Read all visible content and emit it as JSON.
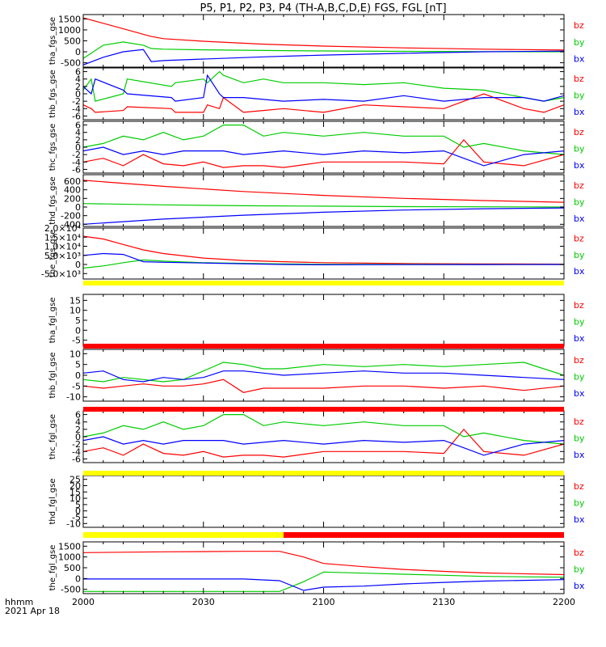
{
  "title": "P5, P1, P2, P3, P4 (TH-A,B,C,D,E) FGS, FGL [nT]",
  "colors": {
    "bx": "#0000ff",
    "by": "#00cc00",
    "bz": "#ff0000",
    "bar_yellow": "#ffff00",
    "bar_red": "#ff0000",
    "axis": "#000000"
  },
  "x_axis": {
    "ticks": [
      "2000",
      "2030",
      "2100",
      "2130",
      "2200"
    ],
    "label_line1": "hhmm",
    "label_line2": "2021 Apr 18"
  },
  "chart_data": [
    {
      "type": "line",
      "ylabel": "tha_fgs_gse",
      "ylim": [
        -700,
        1700
      ],
      "ytick_labels": [
        "1500",
        "1000",
        "500",
        "0",
        "-500"
      ],
      "ytick_values": [
        1500,
        1000,
        500,
        0,
        -500
      ],
      "legend": [
        "bz",
        "by",
        "bx"
      ],
      "x_minutes": [
        0,
        5,
        10,
        15,
        17,
        20,
        30,
        45,
        60,
        80,
        100,
        120
      ],
      "series": [
        {
          "name": "bz",
          "values": [
            1550,
            1300,
            1050,
            800,
            700,
            600,
            480,
            350,
            260,
            180,
            120,
            80
          ]
        },
        {
          "name": "by",
          "values": [
            -300,
            300,
            450,
            300,
            150,
            120,
            90,
            60,
            40,
            20,
            10,
            0
          ]
        },
        {
          "name": "bx",
          "values": [
            -600,
            -250,
            0,
            100,
            -450,
            -400,
            -330,
            -230,
            -150,
            -70,
            0,
            30
          ]
        }
      ]
    },
    {
      "type": "line",
      "ylabel": "thb_fgs_gse",
      "ylim": [
        -7,
        7
      ],
      "ytick_labels": [
        "6",
        "4",
        "2",
        "0",
        "-2",
        "-4",
        "-6"
      ],
      "ytick_values": [
        6,
        4,
        2,
        0,
        -2,
        -4,
        -6
      ],
      "legend": [
        "bz",
        "by",
        "bx"
      ],
      "x_minutes": [
        0,
        2,
        3,
        10,
        11,
        22,
        23,
        30,
        31,
        34,
        35,
        40,
        45,
        50,
        60,
        70,
        80,
        90,
        100,
        110,
        115,
        120
      ],
      "series": [
        {
          "name": "bz",
          "values": [
            -3,
            -4,
            -5,
            -4.5,
            -3.5,
            -4,
            -5,
            -5,
            -3,
            -4,
            -1,
            -5,
            -4.5,
            -4,
            -5,
            -3,
            -3.5,
            -4,
            0,
            -4,
            -5,
            -3
          ]
        },
        {
          "name": "by",
          "values": [
            1,
            4,
            -2,
            0,
            4,
            2,
            3,
            4,
            3,
            6,
            5,
            3,
            4,
            3,
            3,
            2.5,
            3,
            1.5,
            1,
            -1,
            -2,
            -1
          ]
        },
        {
          "name": "bx",
          "values": [
            2,
            0,
            4,
            1,
            0,
            -1,
            -2,
            -1,
            5,
            0,
            -1,
            -1,
            -1.5,
            -2,
            -1.5,
            -2,
            -0.5,
            -2,
            -1,
            -1,
            -2,
            -0.5
          ]
        }
      ]
    },
    {
      "type": "line",
      "ylabel": "thc_fgs_gse",
      "ylim": [
        -7,
        7
      ],
      "ytick_labels": [
        "6",
        "4",
        "2",
        "0",
        "-2",
        "-4",
        "-6"
      ],
      "ytick_values": [
        6,
        4,
        2,
        0,
        -2,
        -4,
        -6
      ],
      "legend": [
        "bz",
        "by",
        "bx"
      ],
      "x_minutes": [
        0,
        5,
        10,
        15,
        20,
        25,
        30,
        35,
        40,
        45,
        50,
        60,
        70,
        80,
        90,
        95,
        100,
        110,
        120
      ],
      "series": [
        {
          "name": "bz",
          "values": [
            -4,
            -3,
            -5,
            -2,
            -4.5,
            -5,
            -4,
            -5.5,
            -5,
            -5,
            -5.5,
            -4,
            -4,
            -4,
            -4.5,
            2,
            -4,
            -5,
            -2
          ]
        },
        {
          "name": "by",
          "values": [
            0,
            1,
            3,
            2,
            4,
            2,
            3,
            6,
            6,
            3,
            4,
            3,
            4,
            3,
            3,
            0,
            1,
            -1,
            -2
          ]
        },
        {
          "name": "bx",
          "values": [
            -1,
            0,
            -2,
            -1,
            -2,
            -1,
            -1,
            -1,
            -2,
            -1.5,
            -1,
            -2,
            -1,
            -1.5,
            -1,
            -3,
            -5,
            -2,
            -1
          ]
        }
      ]
    },
    {
      "type": "line",
      "ylabel": "thd_fgs_gse",
      "ylim": [
        -450,
        750
      ],
      "ytick_labels": [
        "600",
        "400",
        "200",
        "0",
        "-200",
        "-400"
      ],
      "ytick_values": [
        600,
        400,
        200,
        0,
        -200,
        -400
      ],
      "legend": [
        "bz",
        "by",
        "bx"
      ],
      "x_minutes": [
        0,
        20,
        40,
        60,
        80,
        100,
        120
      ],
      "series": [
        {
          "name": "bz",
          "values": [
            620,
            480,
            360,
            270,
            200,
            150,
            110
          ]
        },
        {
          "name": "by",
          "values": [
            80,
            50,
            30,
            20,
            10,
            5,
            0
          ]
        },
        {
          "name": "bx",
          "values": [
            -400,
            -280,
            -190,
            -120,
            -70,
            -40,
            -20
          ]
        }
      ]
    },
    {
      "type": "line",
      "ylabel": "the_fgs_gse",
      "ylim": [
        -8000,
        20000
      ],
      "ytick_labels": [
        "2.0×10⁴",
        "1.5×10⁴",
        "1.0×10⁴",
        "5.0×10³",
        "0",
        "-5.0×10³"
      ],
      "ytick_values": [
        20000,
        15000,
        10000,
        5000,
        0,
        -5000
      ],
      "legend": [
        "bz",
        "by",
        "bx"
      ],
      "x_minutes": [
        0,
        5,
        10,
        15,
        20,
        30,
        40,
        50,
        60,
        80,
        100,
        120
      ],
      "series": [
        {
          "name": "bz",
          "values": [
            15500,
            14000,
            11000,
            8000,
            6000,
            3500,
            2200,
            1500,
            1000,
            500,
            300,
            200
          ]
        },
        {
          "name": "by",
          "values": [
            -2000,
            -800,
            1000,
            2500,
            1800,
            1000,
            600,
            300,
            100,
            50,
            0,
            0
          ]
        },
        {
          "name": "bx",
          "values": [
            5000,
            6000,
            5500,
            1500,
            1200,
            800,
            400,
            0,
            -200,
            -100,
            -50,
            0
          ]
        }
      ]
    },
    {
      "type": "line",
      "ylabel": "tha_fgl_gse",
      "ylim": [
        -8,
        18
      ],
      "ytick_labels": [
        "15",
        "10",
        "5",
        "0",
        "-5"
      ],
      "ytick_values": [
        15,
        10,
        5,
        0,
        -5
      ],
      "legend": [
        "bz",
        "by",
        "bx"
      ],
      "x_minutes": [],
      "series": [
        {
          "name": "bz",
          "values": []
        },
        {
          "name": "by",
          "values": []
        },
        {
          "name": "bx",
          "values": []
        }
      ]
    },
    {
      "type": "line",
      "ylabel": "thb_fgl_gse",
      "ylim": [
        -12,
        12
      ],
      "ytick_labels": [
        "10",
        "5",
        "0",
        "-5",
        "-10"
      ],
      "ytick_values": [
        10,
        5,
        0,
        -5,
        -10
      ],
      "legend": [
        "bz",
        "by",
        "bx"
      ],
      "x_minutes": [
        0,
        5,
        10,
        15,
        20,
        25,
        30,
        35,
        40,
        45,
        50,
        60,
        70,
        80,
        90,
        100,
        110,
        120
      ],
      "series": [
        {
          "name": "bz",
          "values": [
            -5,
            -6,
            -5,
            -4,
            -5,
            -5,
            -4,
            -2,
            -8,
            -6,
            -6,
            -6,
            -5,
            -5,
            -6,
            -5,
            -7,
            -5
          ]
        },
        {
          "name": "by",
          "values": [
            -2,
            -3,
            -1,
            -2,
            -3,
            -2,
            2,
            6,
            5,
            3,
            3,
            5,
            4,
            5,
            4,
            5,
            6,
            0
          ]
        },
        {
          "name": "bx",
          "values": [
            1,
            2,
            -2,
            -3,
            -1,
            -2,
            -1,
            2,
            2,
            1,
            0,
            1,
            2,
            1,
            1,
            0,
            -1,
            -2
          ]
        }
      ]
    },
    {
      "type": "line",
      "ylabel": "thc_fgl_gse",
      "ylim": [
        -7,
        7
      ],
      "ytick_labels": [
        "6",
        "4",
        "2",
        "0",
        "-2",
        "-4",
        "-6"
      ],
      "ytick_values": [
        6,
        4,
        2,
        0,
        -2,
        -4,
        -6
      ],
      "legend": [
        "bz",
        "by",
        "bx"
      ],
      "x_minutes": [
        0,
        5,
        10,
        15,
        20,
        25,
        30,
        35,
        40,
        45,
        50,
        60,
        70,
        80,
        90,
        95,
        100,
        110,
        120
      ],
      "series": [
        {
          "name": "bz",
          "values": [
            -4,
            -3,
            -5,
            -2,
            -4.5,
            -5,
            -4,
            -5.5,
            -5,
            -5,
            -5.5,
            -4,
            -4,
            -4,
            -4.5,
            2,
            -4,
            -5,
            -2
          ]
        },
        {
          "name": "by",
          "values": [
            0,
            1,
            3,
            2,
            4,
            2,
            3,
            6,
            6,
            3,
            4,
            3,
            4,
            3,
            3,
            0,
            1,
            -1,
            -2
          ]
        },
        {
          "name": "bx",
          "values": [
            -1,
            0,
            -2,
            -1,
            -2,
            -1,
            -1,
            -1,
            -2,
            -1.5,
            -1,
            -2,
            -1,
            -1.5,
            -1,
            -3,
            -5,
            -2,
            -1
          ]
        }
      ]
    },
    {
      "type": "line",
      "ylabel": "thd_fgl_gse",
      "ylim": [
        -13,
        28
      ],
      "ytick_labels": [
        "25",
        "20",
        "15",
        "10",
        "5",
        "0",
        "-5",
        "-10"
      ],
      "ytick_values": [
        25,
        20,
        15,
        10,
        5,
        0,
        -5,
        -10
      ],
      "legend": [
        "bz",
        "by",
        "bx"
      ],
      "x_minutes": [],
      "series": [
        {
          "name": "bz",
          "values": []
        },
        {
          "name": "by",
          "values": []
        },
        {
          "name": "bx",
          "values": []
        }
      ]
    },
    {
      "type": "line",
      "ylabel": "the_fgl_gse",
      "ylim": [
        -700,
        1700
      ],
      "ytick_labels": [
        "1500",
        "1000",
        "500",
        "0",
        "-500"
      ],
      "ytick_values": [
        1500,
        1000,
        500,
        0,
        -500
      ],
      "legend": [
        "bz",
        "by",
        "bx"
      ],
      "x_minutes": [
        0,
        10,
        20,
        40,
        49,
        55,
        60,
        70,
        80,
        90,
        100,
        120
      ],
      "series": [
        {
          "name": "bz",
          "values": [
            1200,
            1220,
            1240,
            1260,
            1260,
            1000,
            700,
            550,
            420,
            330,
            260,
            180
          ]
        },
        {
          "name": "by",
          "values": [
            -600,
            -600,
            -600,
            -600,
            -600,
            -150,
            300,
            250,
            200,
            150,
            100,
            60
          ]
        },
        {
          "name": "bx",
          "values": [
            -20,
            -20,
            -20,
            -20,
            -100,
            -550,
            -400,
            -350,
            -250,
            -180,
            -120,
            -50
          ]
        }
      ]
    }
  ],
  "status_bars": [
    {
      "segments": [
        {
          "from": 0,
          "to": 120,
          "color": "yellow"
        }
      ]
    },
    {
      "segments": [
        {
          "from": 0,
          "to": 120,
          "color": "red"
        }
      ]
    },
    {
      "segments": [
        {
          "from": 0,
          "to": 120,
          "color": "red"
        }
      ]
    },
    {
      "segments": [
        {
          "from": 0,
          "to": 120,
          "color": "yellow"
        }
      ]
    },
    {
      "segments": [
        {
          "from": 0,
          "to": 50,
          "color": "yellow"
        },
        {
          "from": 50,
          "to": 120,
          "color": "red"
        }
      ]
    }
  ]
}
